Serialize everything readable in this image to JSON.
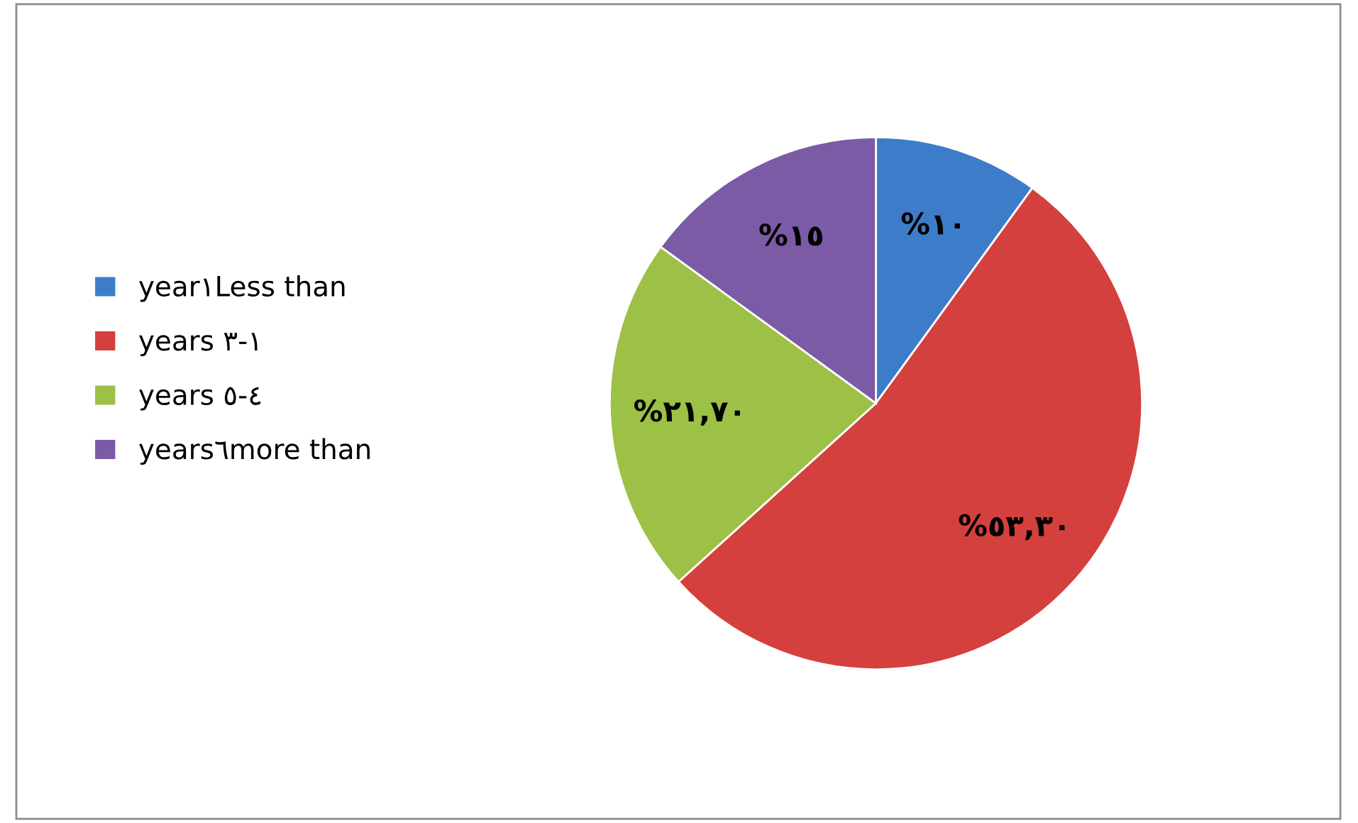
{
  "chart_data": {
    "type": "pie",
    "categories": [
      "year١Less than",
      "years ٣-١",
      "years ٥-٤",
      "years٦more than"
    ],
    "values": [
      10,
      53.3,
      21.7,
      15
    ],
    "colors": [
      "#3d7cc9",
      "#d4403d",
      "#9dc046",
      "#7b5aa6"
    ],
    "value_labels": [
      "%١٠",
      "%٥٣,٣٠",
      "%٢١,٧٠",
      "%١٥"
    ],
    "legend": "left"
  }
}
